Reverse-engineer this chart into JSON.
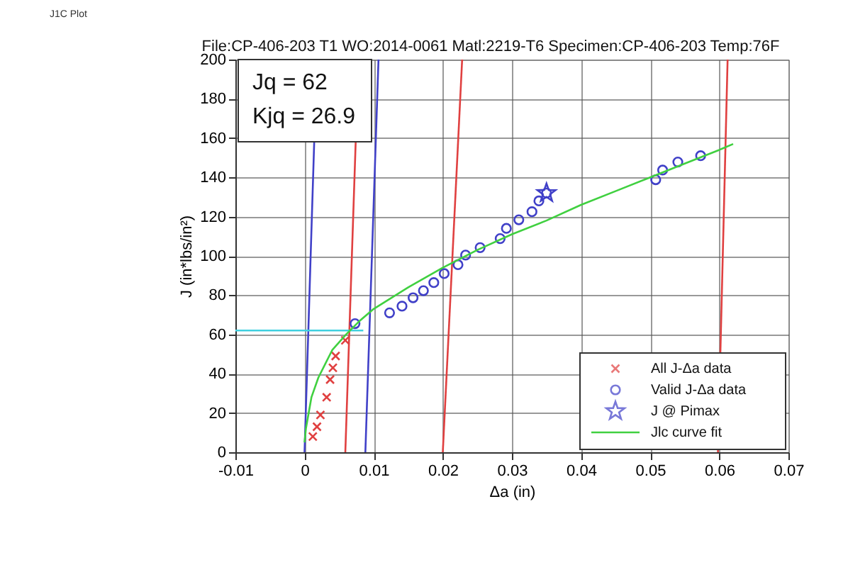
{
  "chart_data": {
    "type": "scatter",
    "title": "File:CP-406-203  T1   WO:2014-0061   Matl:2219-T6   Specimen:CP-406-203   Temp:76F",
    "xlabel": "Δa (in)",
    "ylabel": "J (in*lbs/in²)",
    "annotations": [
      "J1C Plot",
      "Jq = 62",
      "Kjq = 26.9"
    ],
    "xlim": [
      -0.01,
      0.07
    ],
    "xticks": [
      -0.01,
      0,
      0.01,
      0.02,
      0.03,
      0.04,
      0.05,
      0.06,
      0.07
    ],
    "ylim": [
      0,
      200
    ],
    "yticks": [
      0,
      20,
      40,
      60,
      80,
      100,
      120,
      140,
      160,
      180,
      200
    ],
    "grid": true,
    "legend": "bottom right",
    "series": [
      {
        "type": "line",
        "color": "#4040c8",
        "x": [
          0,
          0.0014
        ],
        "values": [
          0,
          158
        ],
        "marker": "none"
      },
      {
        "type": "line",
        "color": "#4040c8",
        "x": [
          0.0088,
          0.0107
        ],
        "values": [
          0,
          200
        ],
        "marker": "none"
      },
      {
        "type": "line",
        "color": "#e04040",
        "x": [
          0.0059,
          0.0074
        ],
        "values": [
          0,
          158
        ],
        "marker": "none"
      },
      {
        "type": "line",
        "color": "#e04040",
        "x": [
          0.02,
          0.0228
        ],
        "values": [
          0,
          200
        ],
        "marker": "none"
      },
      {
        "type": "line",
        "color": "#e04040",
        "x": [
          0.0598,
          0.0612
        ],
        "values": [
          0,
          200
        ],
        "marker": "none"
      },
      {
        "type": "line",
        "color": "#40d0e0",
        "x": [
          -0.01,
          0.0085
        ],
        "values": [
          62,
          62
        ],
        "marker": "none"
      },
      {
        "name": "All J-Δa data",
        "color": "#e04040",
        "marker": "cross",
        "x": [
          0.0012,
          0.0018,
          0.0023,
          0.0032,
          0.0037,
          0.0041,
          0.0045,
          0.0059
        ],
        "values": [
          8,
          13,
          19,
          28,
          37,
          43,
          49,
          57
        ]
      },
      {
        "name": "Valid J-Δa data",
        "color": "#4040c8",
        "marker": "circle",
        "x": [
          0.0073,
          0.0123,
          0.0141,
          0.0157,
          0.0172,
          0.0187,
          0.0202,
          0.0222,
          0.0233,
          0.0254,
          0.0283,
          0.0292,
          0.031,
          0.0329,
          0.0339,
          0.035,
          0.0508,
          0.0518,
          0.054,
          0.0573
        ],
        "values": [
          65.5,
          71,
          74.4,
          78.7,
          82.3,
          86.4,
          91,
          95.5,
          100.4,
          104.2,
          108.8,
          114,
          118.4,
          122.5,
          128,
          132,
          138.8,
          143.7,
          147.8,
          151
        ]
      },
      {
        "name": "J @ Pimax",
        "color": "#4040c8",
        "marker": "star",
        "x": [
          0.035
        ],
        "values": [
          132
        ]
      },
      {
        "name": "Jlc curve fit",
        "type": "line",
        "color": "#40d040",
        "marker": "none",
        "x": [
          0,
          0.0002,
          0.001,
          0.002,
          0.004,
          0.006,
          0.008,
          0.01,
          0.015,
          0.02,
          0.025,
          0.03,
          0.035,
          0.04,
          0.045,
          0.05,
          0.055,
          0.06,
          0.062
        ],
        "values": [
          5,
          12,
          28,
          38,
          52,
          60,
          67,
          73,
          84,
          94,
          103,
          111,
          118,
          126,
          133,
          140,
          147,
          154,
          157
        ]
      }
    ]
  }
}
